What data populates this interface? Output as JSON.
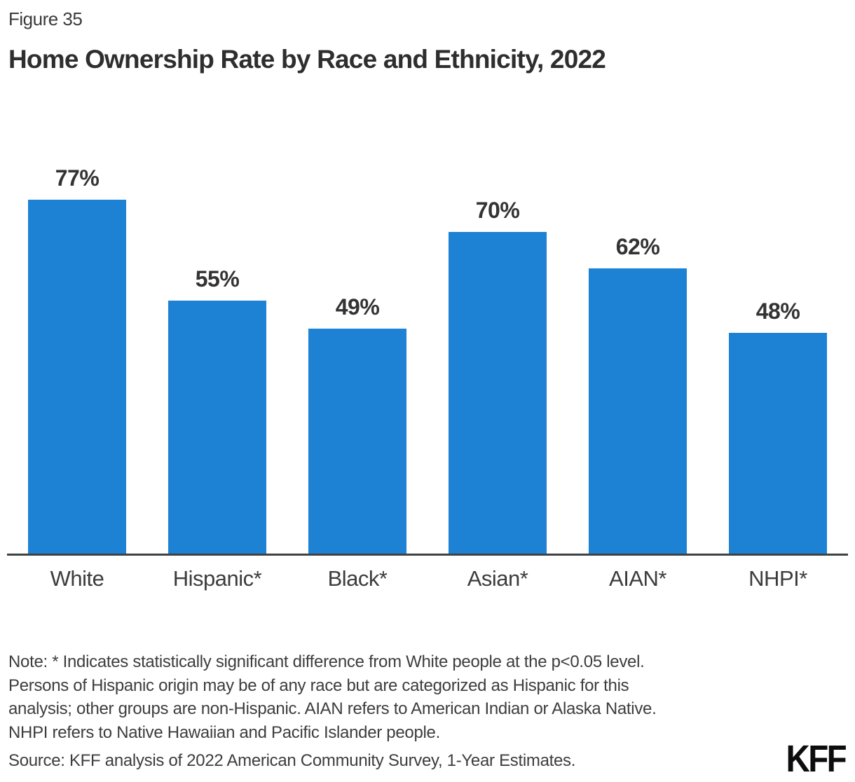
{
  "header": {
    "figure_label": "Figure 35",
    "title": "Home Ownership Rate by Race and Ethnicity, 2022"
  },
  "chart_data": {
    "type": "bar",
    "categories": [
      "White",
      "Hispanic*",
      "Black*",
      "Asian*",
      "AIAN*",
      "NHPI*"
    ],
    "values": [
      77,
      55,
      49,
      70,
      62,
      48
    ],
    "value_labels": [
      "77%",
      "55%",
      "49%",
      "70%",
      "62%",
      "48%"
    ],
    "title": "Home Ownership Rate by Race and Ethnicity, 2022",
    "xlabel": "",
    "ylabel": "",
    "ylim": [
      0,
      87
    ],
    "grid": false,
    "legend": false,
    "bar_color": "#1E82D4",
    "axis_line_color": "#3F4245"
  },
  "note": {
    "lines": [
      "Note: * Indicates statistically significant difference from White people at the p<0.05 level.",
      "Persons of Hispanic origin may be of any race but are categorized as Hispanic for this",
      "analysis; other groups are non-Hispanic. AIAN refers to American Indian or Alaska Native.",
      "NHPI refers to Native Hawaiian and Pacific Islander people."
    ]
  },
  "source": {
    "text": "Source: KFF analysis of 2022 American Community Survey, 1-Year Estimates."
  },
  "logo": {
    "text": "KFF"
  },
  "colors": {
    "accent": "#1E82D4",
    "axis": "#3F4245",
    "title_text": "#2E2E2E",
    "body_text": "#3D3D3D"
  }
}
